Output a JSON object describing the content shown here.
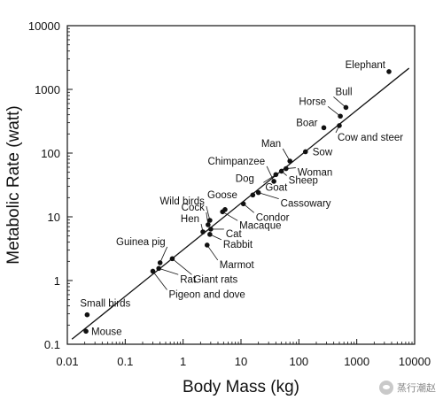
{
  "chart_data": {
    "type": "scatter",
    "xlabel": "Body Mass (kg)",
    "ylabel": "Metabolic Rate (watt)",
    "x_scale": "log",
    "y_scale": "log",
    "xlim": [
      0.01,
      10000
    ],
    "ylim": [
      0.1,
      10000
    ],
    "x_ticks": [
      "0.01",
      "0.1",
      "1",
      "10",
      "100",
      "1000",
      "10000"
    ],
    "y_ticks": [
      "0.1",
      "1",
      "10",
      "100",
      "1000",
      "10000"
    ],
    "grid": false,
    "points": [
      {
        "name": "Mouse",
        "x": 0.021,
        "y": 0.16
      },
      {
        "name": "Small birds",
        "x": 0.022,
        "y": 0.29
      },
      {
        "name": "Pigeon and dove",
        "x": 0.3,
        "y": 1.4
      },
      {
        "name": "Rat",
        "x": 0.38,
        "y": 1.55
      },
      {
        "name": "Guinea pig",
        "x": 0.4,
        "y": 1.9
      },
      {
        "name": "Giant rats",
        "x": 0.65,
        "y": 2.2
      },
      {
        "name": "Hen",
        "x": 2.2,
        "y": 5.8
      },
      {
        "name": "Marmot",
        "x": 2.6,
        "y": 3.6
      },
      {
        "name": "Cock",
        "x": 2.7,
        "y": 7.5
      },
      {
        "name": "Rabbit",
        "x": 2.9,
        "y": 5.3
      },
      {
        "name": "Cat",
        "x": 3.0,
        "y": 6.4
      },
      {
        "name": "Wild birds",
        "x": 2.9,
        "y": 8.8
      },
      {
        "name": "Macaque",
        "x": 4.8,
        "y": 12
      },
      {
        "name": "Goose",
        "x": 5.3,
        "y": 13
      },
      {
        "name": "Condor",
        "x": 11,
        "y": 16
      },
      {
        "name": "Dog",
        "x": 16,
        "y": 22
      },
      {
        "name": "Cassowary",
        "x": 20,
        "y": 24
      },
      {
        "name": "Chimpanzee",
        "x": 37,
        "y": 36
      },
      {
        "name": "Goat",
        "x": 40,
        "y": 46
      },
      {
        "name": "Sheep",
        "x": 50,
        "y": 52
      },
      {
        "name": "Woman",
        "x": 60,
        "y": 57
      },
      {
        "name": "Man",
        "x": 70,
        "y": 75
      },
      {
        "name": "Sow",
        "x": 130,
        "y": 105
      },
      {
        "name": "Boar",
        "x": 270,
        "y": 250
      },
      {
        "name": "Cow and steer",
        "x": 500,
        "y": 270
      },
      {
        "name": "Horse",
        "x": 520,
        "y": 380
      },
      {
        "name": "Bull",
        "x": 650,
        "y": 520
      },
      {
        "name": "Elephant",
        "x": 3600,
        "y": 1900
      }
    ],
    "fit_line": {
      "x": [
        0.012,
        8000
      ],
      "y": [
        0.12,
        2150
      ]
    }
  },
  "watermark": {
    "text": "蒸行潮赵"
  }
}
